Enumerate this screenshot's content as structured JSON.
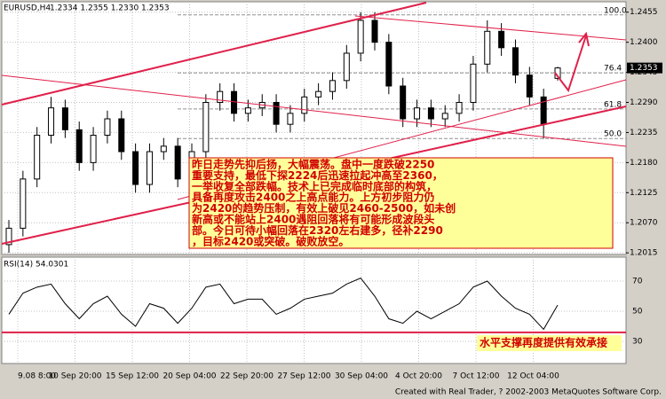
{
  "chart_data": {
    "type": "candlestick",
    "symbol": "EURUSD,H4",
    "header_values": "1.2334 1.2355 1.2330 1.2353",
    "open": [
      1.203,
      1.206,
      1.215,
      1.223,
      1.228,
      1.224,
      1.218,
      1.223,
      1.226,
      1.22,
      1.214,
      1.22,
      1.221,
      1.215,
      1.22,
      1.229,
      1.231,
      1.227,
      1.228,
      1.229,
      1.225,
      1.227,
      1.23,
      1.231,
      1.233,
      1.238,
      1.244,
      1.24,
      1.232,
      1.226,
      1.228,
      1.226,
      1.227,
      1.229,
      1.236,
      1.242,
      1.239,
      1.234,
      1.23,
      1.2334
    ],
    "high": [
      1.2075,
      1.2165,
      1.2245,
      1.23,
      1.2295,
      1.2255,
      1.2245,
      1.2275,
      1.2275,
      1.2215,
      1.2215,
      1.2225,
      1.2225,
      1.2215,
      1.2305,
      1.2325,
      1.2325,
      1.2295,
      1.2305,
      1.2305,
      1.2285,
      1.2315,
      1.2325,
      1.2345,
      1.2395,
      1.2455,
      1.2455,
      1.2415,
      1.2335,
      1.2295,
      1.2295,
      1.2285,
      1.2305,
      1.2375,
      1.244,
      1.2435,
      1.2405,
      1.2355,
      1.2315,
      1.2355
    ],
    "low": [
      1.2015,
      1.2045,
      1.2135,
      1.2215,
      1.2225,
      1.2165,
      1.2165,
      1.2215,
      1.2185,
      1.2125,
      1.2125,
      1.2185,
      1.2135,
      1.2135,
      1.2185,
      1.2275,
      1.2255,
      1.2255,
      1.2265,
      1.2235,
      1.2235,
      1.2255,
      1.2285,
      1.2295,
      1.2315,
      1.2365,
      1.2385,
      1.2305,
      1.2245,
      1.2245,
      1.2245,
      1.2245,
      1.2255,
      1.2275,
      1.2345,
      1.2375,
      1.2325,
      1.2285,
      1.2224,
      1.233
    ],
    "close": [
      1.206,
      1.215,
      1.223,
      1.228,
      1.224,
      1.218,
      1.223,
      1.226,
      1.22,
      1.214,
      1.22,
      1.221,
      1.215,
      1.22,
      1.229,
      1.231,
      1.227,
      1.228,
      1.229,
      1.225,
      1.227,
      1.23,
      1.231,
      1.233,
      1.238,
      1.244,
      1.24,
      1.232,
      1.226,
      1.228,
      1.226,
      1.227,
      1.229,
      1.236,
      1.242,
      1.239,
      1.234,
      1.23,
      1.225,
      1.2353
    ],
    "color": "#000000",
    "ylim": [
      1.2012,
      1.2474
    ],
    "yticks": [
      1.2455,
      {
        "value": 1.24,
        "label": "1.2400"
      },
      1.2345,
      {
        "value": 1.229,
        "label": "1.2290"
      },
      1.2235,
      {
        "value": 1.218,
        "label": "1.2180"
      },
      1.2125,
      {
        "value": 1.207,
        "label": "1.2070"
      },
      1.2015
    ],
    "grid": true,
    "fib_levels": [
      {
        "value": 1.245,
        "label": "100.0"
      },
      {
        "value": 1.2344,
        "label": "76.4"
      },
      {
        "value": 1.2278,
        "label": "61.8"
      },
      {
        "value": 1.2224,
        "label": "50.0"
      }
    ],
    "xticks": [
      "9.08 8:00",
      "10 Sep 20:00",
      "15 Sep 12:00",
      "20 Sep 04:00",
      "22 Sep 20:00",
      "27 Sep 12:00",
      "30 Sep 04:00",
      "4 Oct 20:00",
      "7 Oct 12:00",
      "12 Oct 04:00"
    ],
    "rsi": {
      "name": "RSI(14)",
      "color": "#000000",
      "values": [
        48,
        62,
        66,
        68,
        55,
        45,
        55,
        60,
        48,
        40,
        55,
        52,
        42,
        52,
        66,
        68,
        55,
        58,
        58,
        48,
        52,
        58,
        60,
        62,
        68,
        72,
        60,
        45,
        42,
        50,
        45,
        50,
        55,
        66,
        70,
        60,
        52,
        48,
        38,
        54.0301
      ],
      "ylim": [
        15.3,
        85.9
      ],
      "yticks": [
        70,
        50,
        30
      ],
      "support_level": 36,
      "annotation": "水平支撑再度提供有效承接"
    },
    "annotation_lines": [
      "昨日走势先抑后扬，大幅震荡。盘中一度跌破2250",
      "重要支持，最低下探2224后迅速拉起冲高至2360，",
      "一举收复全部跌幅。技术上已完成临时底部的构筑，",
      "具备再度攻击2400之上高点能力。上方初步阻力仍",
      "为2420的趋势压制，有效上破见2460-2500，如未创",
      "新高或不能站上2400遇阻回落将有可能形成波段头",
      "部。今日可待小幅回落在2320左右建多，径补2290",
      "，目标2420或突破。破败放空。"
    ],
    "footer": "Created with Real Trader, ? 2002-2003 MetaQuotes Software Corp."
  }
}
